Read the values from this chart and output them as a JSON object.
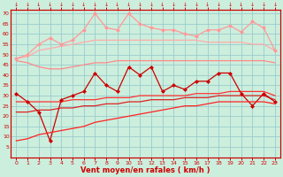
{
  "title": "",
  "xlabel": "Vent moyen/en rafales ( km/h )",
  "ylabel": "",
  "background_color": "#cceedd",
  "grid_color": "#99cccc",
  "x": [
    0,
    1,
    2,
    3,
    4,
    5,
    6,
    7,
    8,
    9,
    10,
    11,
    12,
    13,
    14,
    15,
    16,
    17,
    18,
    19,
    20,
    21,
    22,
    23
  ],
  "ylim": [
    0,
    72
  ],
  "yticks": [
    5,
    10,
    15,
    20,
    25,
    30,
    35,
    40,
    45,
    50,
    55,
    60,
    65,
    70
  ],
  "lines": [
    {
      "color": "#ffaaaa",
      "lw": 0.9,
      "marker": null,
      "values": [
        48,
        49,
        52,
        53,
        54,
        55,
        56,
        57,
        57,
        57,
        57,
        57,
        57,
        57,
        57,
        57,
        57,
        56,
        56,
        56,
        56,
        55,
        55,
        52
      ]
    },
    {
      "color": "#ff9999",
      "lw": 0.9,
      "marker": "D",
      "markersize": 2.0,
      "values": [
        48,
        50,
        55,
        58,
        55,
        57,
        62,
        70,
        63,
        62,
        70,
        65,
        63,
        62,
        62,
        60,
        59,
        62,
        62,
        64,
        61,
        66,
        63,
        52
      ]
    },
    {
      "color": "#ff8888",
      "lw": 0.9,
      "marker": null,
      "values": [
        47,
        46,
        44,
        43,
        43,
        44,
        45,
        46,
        46,
        47,
        47,
        47,
        47,
        47,
        47,
        47,
        47,
        47,
        47,
        47,
        47,
        47,
        47,
        46
      ]
    },
    {
      "color": "#dd2222",
      "lw": 0.9,
      "marker": null,
      "values": [
        22,
        22,
        23,
        23,
        24,
        24,
        25,
        25,
        26,
        26,
        27,
        27,
        28,
        28,
        28,
        29,
        29,
        29,
        30,
        30,
        30,
        30,
        30,
        28
      ]
    },
    {
      "color": "#ff3333",
      "lw": 0.9,
      "marker": null,
      "values": [
        27,
        27,
        27,
        27,
        27,
        28,
        28,
        28,
        29,
        29,
        29,
        30,
        30,
        30,
        30,
        30,
        31,
        31,
        31,
        32,
        32,
        32,
        32,
        30
      ]
    },
    {
      "color": "#cc0000",
      "lw": 0.9,
      "marker": "D",
      "markersize": 2.0,
      "values": [
        31,
        27,
        22,
        8,
        28,
        30,
        32,
        41,
        35,
        32,
        44,
        40,
        44,
        32,
        35,
        33,
        37,
        37,
        41,
        41,
        31,
        25,
        31,
        27
      ]
    },
    {
      "color": "#ff2222",
      "lw": 0.9,
      "marker": null,
      "values": [
        8,
        9,
        11,
        12,
        13,
        14,
        15,
        17,
        18,
        19,
        20,
        21,
        22,
        23,
        24,
        25,
        25,
        26,
        27,
        27,
        27,
        27,
        27,
        26
      ]
    }
  ]
}
